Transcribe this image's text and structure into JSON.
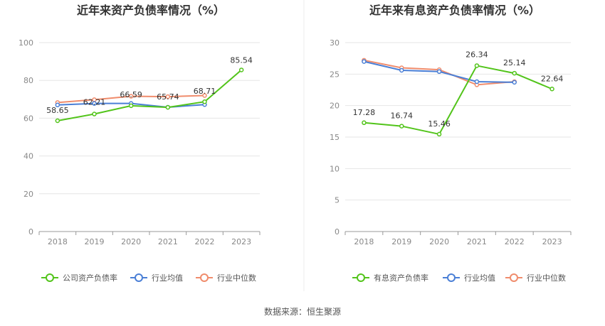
{
  "chart_data": [
    {
      "type": "line",
      "title": "近年来资产负债率情况（%）",
      "categories": [
        "2018",
        "2019",
        "2020",
        "2021",
        "2022",
        "2023"
      ],
      "ylim": [
        0,
        100
      ],
      "yticks": [
        0,
        20,
        40,
        60,
        80,
        100
      ],
      "grid": true,
      "legend_position": "bottom",
      "series": [
        {
          "name": "公司资产负债率",
          "color": "#52c41a",
          "values": [
            58.65,
            62.21,
            66.59,
            65.74,
            68.71,
            85.54
          ],
          "labels": true
        },
        {
          "name": "行业均值",
          "color": "#4a7fd6",
          "values": [
            67.0,
            67.8,
            67.8,
            65.8,
            67.2,
            null
          ],
          "labels": false
        },
        {
          "name": "行业中位数",
          "color": "#f08c6c",
          "values": [
            68.3,
            69.8,
            71.6,
            71.4,
            72.0,
            null
          ],
          "labels": false
        }
      ]
    },
    {
      "type": "line",
      "title": "近年来有息资产负债率情况（%）",
      "categories": [
        "2018",
        "2019",
        "2020",
        "2021",
        "2022",
        "2023"
      ],
      "ylim": [
        0,
        30
      ],
      "yticks": [
        0,
        5,
        10,
        15,
        20,
        25,
        30
      ],
      "grid": true,
      "legend_position": "bottom",
      "series": [
        {
          "name": "有息资产负债率",
          "color": "#52c41a",
          "values": [
            17.28,
            16.74,
            15.46,
            26.34,
            25.14,
            22.64
          ],
          "labels": true
        },
        {
          "name": "行业均值",
          "color": "#4a7fd6",
          "values": [
            27.0,
            25.6,
            25.4,
            23.8,
            23.7,
            null
          ],
          "labels": false
        },
        {
          "name": "行业中位数",
          "color": "#f08c6c",
          "values": [
            27.2,
            26.0,
            25.7,
            23.3,
            23.8,
            null
          ],
          "labels": false
        }
      ]
    }
  ],
  "footer": {
    "source": "数据来源：恒生聚源"
  }
}
